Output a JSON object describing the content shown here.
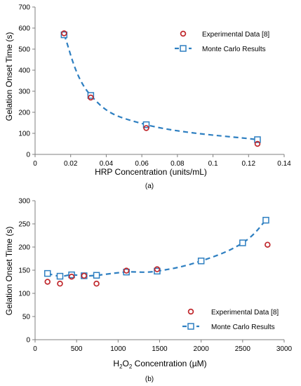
{
  "colors": {
    "experimental": "#c0282d",
    "monte_carlo": "#2e7fc1",
    "axis": "#7f7f7f",
    "text": "#000000"
  },
  "chart_data": [
    {
      "type": "scatter",
      "panel_label": "(a)",
      "xlabel": "HRP Concentration (units/mL)",
      "ylabel": "Gelation Onset Time (s)",
      "xlim": [
        0,
        0.14
      ],
      "ylim": [
        0,
        700
      ],
      "xticks": [
        0,
        0.02,
        0.04,
        0.06,
        0.08,
        0.1,
        0.12,
        0.14
      ],
      "xtick_labels": [
        "0",
        "0.02",
        "0.04",
        "0.06",
        "0.08",
        "0.1",
        "0.12",
        "0.14"
      ],
      "yticks": [
        0,
        100,
        200,
        300,
        400,
        500,
        600,
        700
      ],
      "ytick_labels": [
        "0",
        "100",
        "200",
        "300",
        "400",
        "500",
        "600",
        "700"
      ],
      "grid": false,
      "legend_position": "top-right",
      "series": [
        {
          "name": "Experimental Data [8]",
          "marker": "circle",
          "line": "none",
          "x": [
            0.0163,
            0.0313,
            0.0625,
            0.125
          ],
          "y": [
            575,
            270,
            125,
            50
          ]
        },
        {
          "name": "Monte Carlo Results",
          "marker": "square",
          "line": "dashed",
          "x": [
            0.0163,
            0.0313,
            0.0625,
            0.125
          ],
          "y": [
            568,
            280,
            141,
            70
          ]
        }
      ]
    },
    {
      "type": "scatter",
      "panel_label": "(b)",
      "xlabel_prefix": "H",
      "xlabel_sub1": "2",
      "xlabel_mid": "O",
      "xlabel_sub2": "2",
      "xlabel_suffix": " Concentration (µM)",
      "ylabel": "Gelation Onset Time (s)",
      "xlim": [
        0,
        3000
      ],
      "ylim": [
        0,
        300
      ],
      "xticks": [
        0,
        500,
        1000,
        1500,
        2000,
        2500,
        3000
      ],
      "xtick_labels": [
        "0",
        "500",
        "1000",
        "1500",
        "2000",
        "2500",
        "3000"
      ],
      "yticks": [
        0,
        50,
        100,
        150,
        200,
        250,
        300
      ],
      "ytick_labels": [
        "0",
        "50",
        "100",
        "150",
        "200",
        "250",
        "300"
      ],
      "grid": false,
      "legend_position": "bottom-right",
      "series": [
        {
          "name": "Experimental Data [8]",
          "marker": "circle",
          "line": "none",
          "x": [
            150,
            300,
            440,
            590,
            740,
            1100,
            1470,
            2800
          ],
          "y": [
            125,
            121,
            136,
            138,
            121,
            149,
            152,
            205
          ]
        },
        {
          "name": "Monte Carlo Results",
          "marker": "square",
          "line": "dashed",
          "x": [
            150,
            300,
            440,
            590,
            740,
            1100,
            1470,
            2000,
            2500,
            2780
          ],
          "y": [
            143,
            137,
            140,
            138,
            139,
            146,
            148,
            170,
            209,
            258
          ]
        }
      ]
    }
  ]
}
